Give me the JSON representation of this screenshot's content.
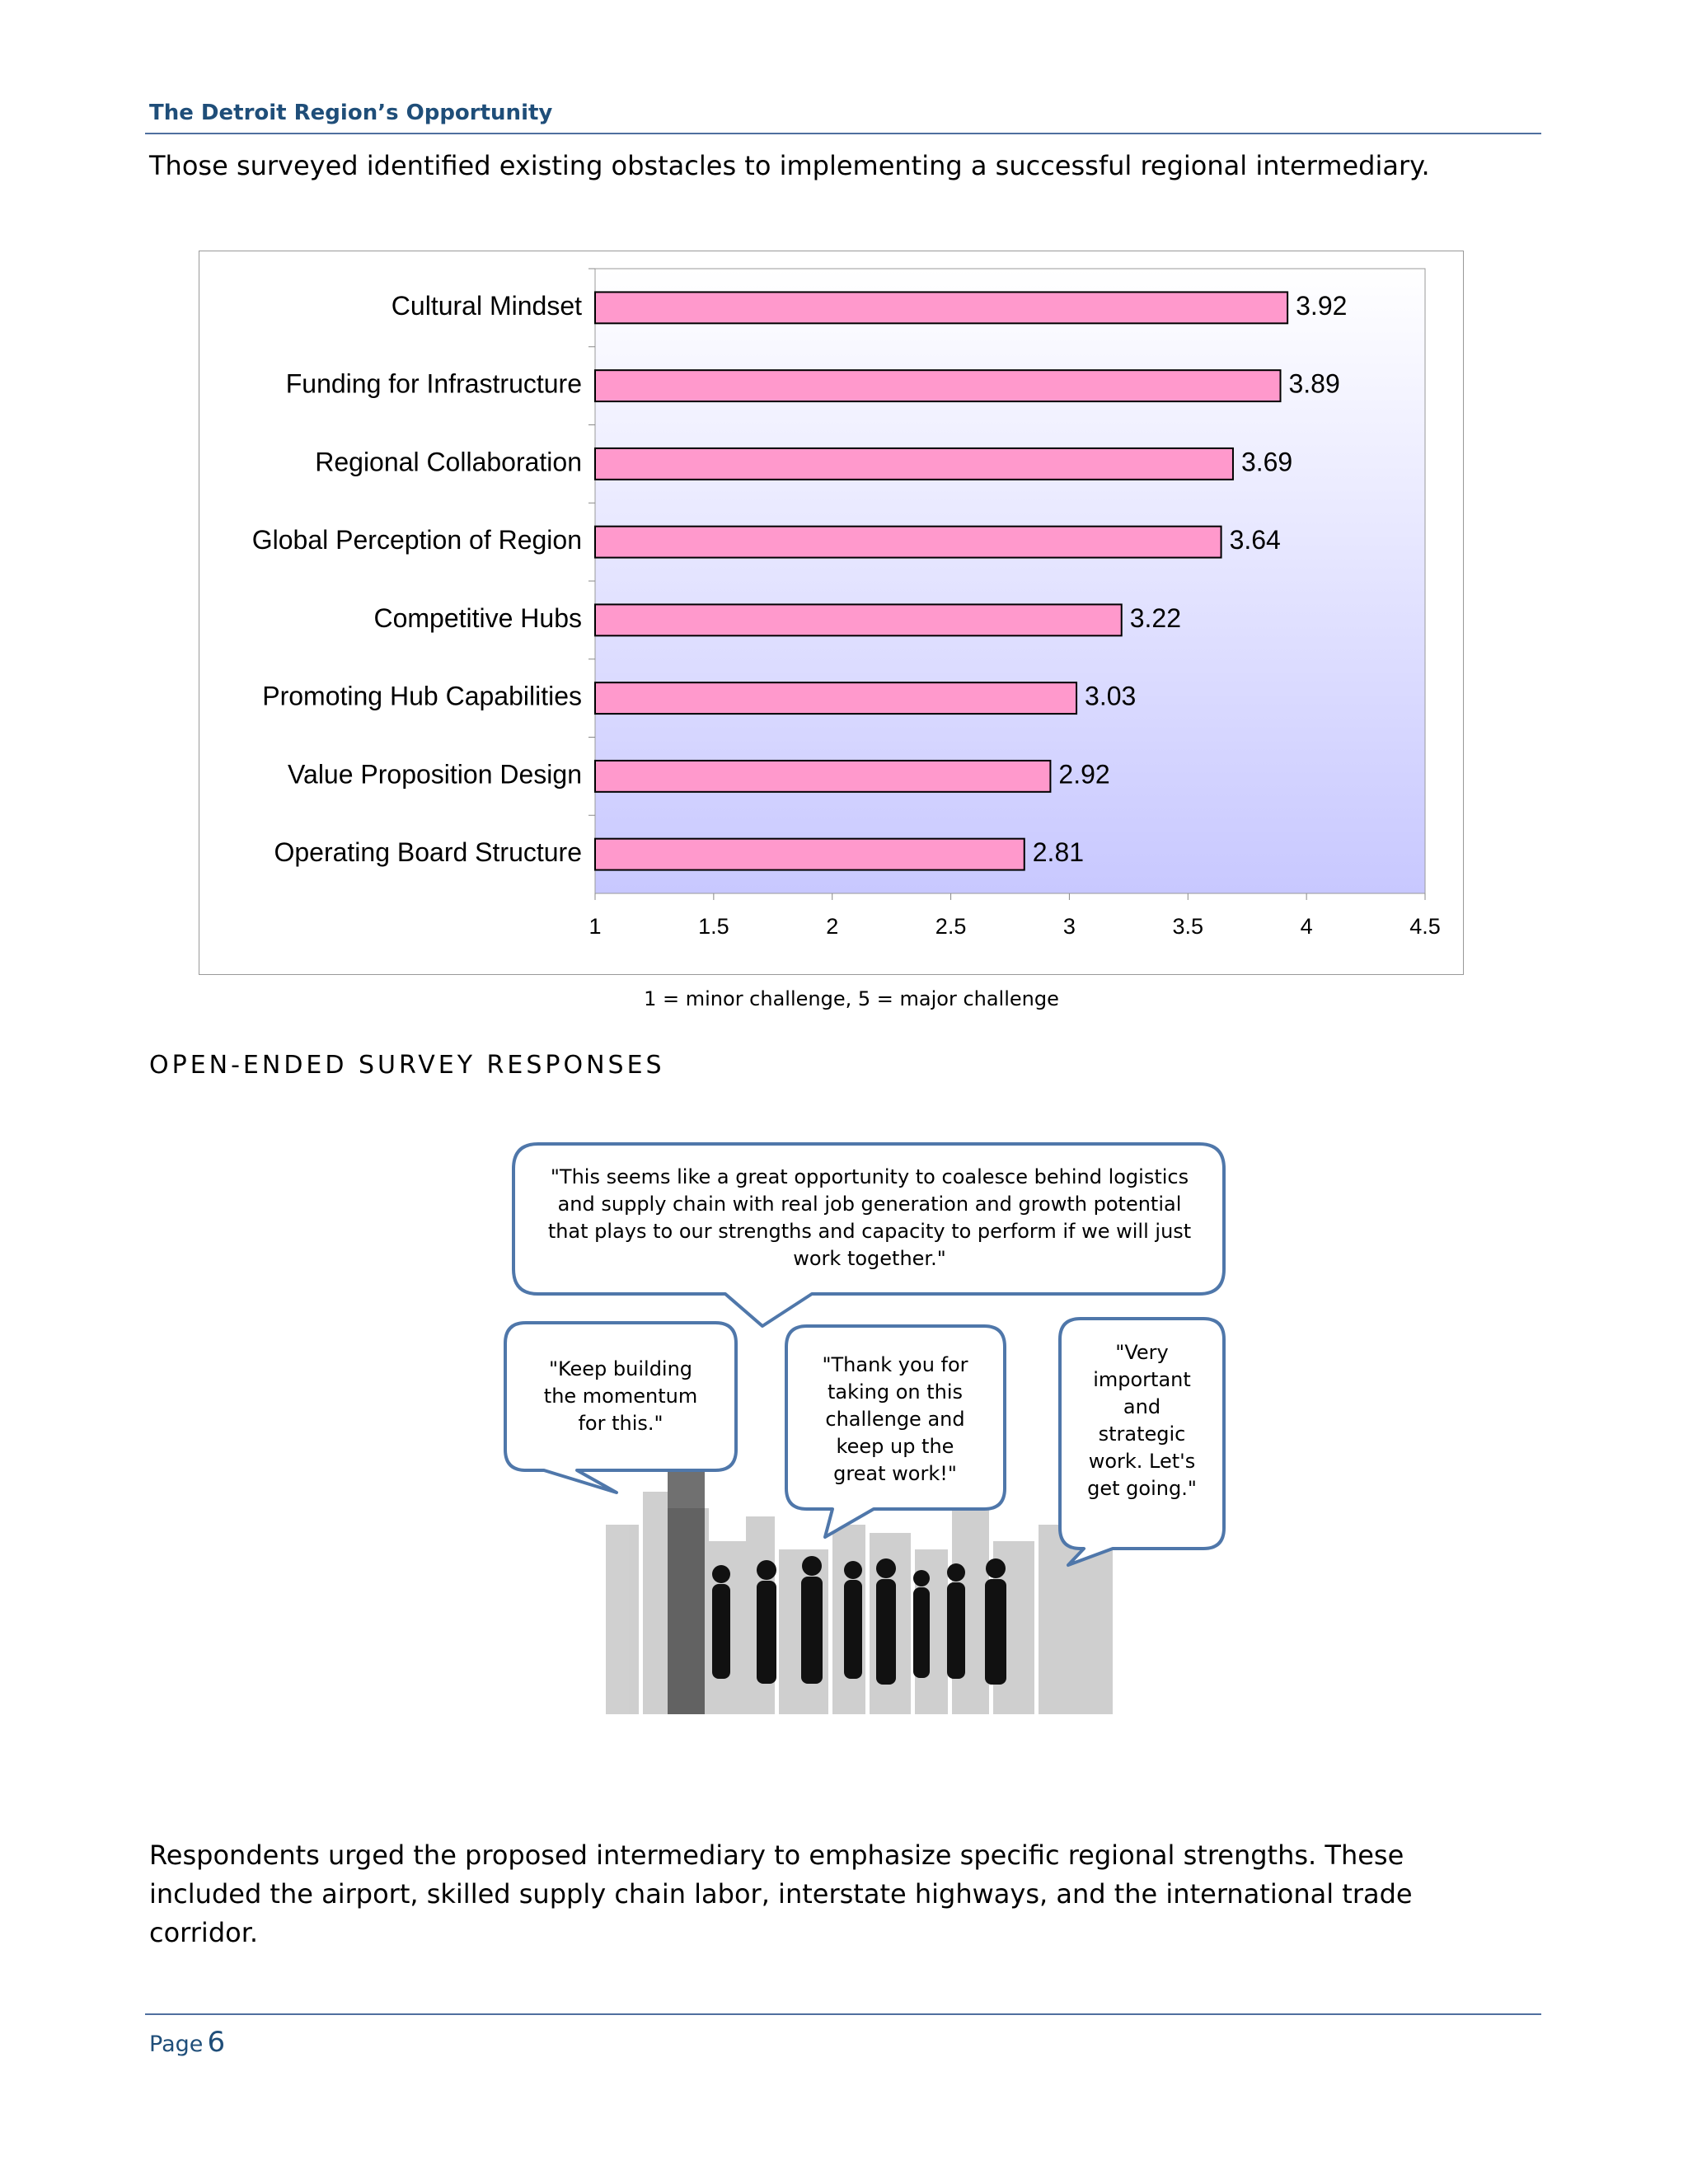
{
  "header": {
    "title": "The Detroit Region’s Opportunity"
  },
  "intro": "Those surveyed identified existing obstacles to implementing a successful regional intermediary.",
  "chart_data": {
    "type": "bar",
    "orientation": "horizontal",
    "categories": [
      "Cultural Mindset",
      "Funding for Infrastructure",
      "Regional Collaboration",
      "Global Perception of Region",
      "Competitive Hubs",
      "Promoting Hub Capabilities",
      "Value Proposition Design",
      "Operating Board Structure"
    ],
    "values": [
      3.92,
      3.89,
      3.69,
      3.64,
      3.22,
      3.03,
      2.92,
      2.81
    ],
    "color": "#ff99cc",
    "xlim": [
      1,
      4.5
    ],
    "xticks": [
      1,
      1.5,
      2,
      2.5,
      3,
      3.5,
      4,
      4.5
    ]
  },
  "caption": "1 = minor challenge, 5 = major challenge",
  "section_heading": "OPEN-ENDED SURVEY RESPONSES",
  "quotes": [
    "\"This seems like a great opportunity to coalesce behind logistics and supply chain with real job generation and growth potential that plays to our strengths and capacity to perform if we will just work together.\"",
    "\"Keep building the momentum for this.\"",
    "\"Thank you for taking on this challenge and keep up the great work!\"",
    "\"Very important and strategic work. Let's get going.\""
  ],
  "body": "Respondents urged the proposed intermediary to emphasize specific regional strengths.  These included the airport, skilled supply chain labor, interstate highways, and the international trade corridor.",
  "footer": {
    "label": "Page",
    "number": 6
  }
}
